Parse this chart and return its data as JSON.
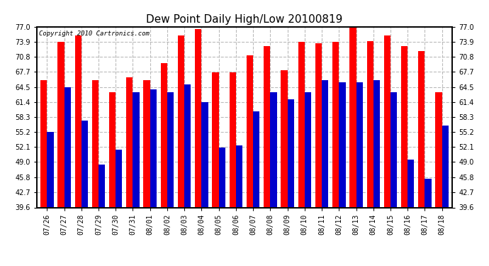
{
  "title": "Dew Point Daily High/Low 20100819",
  "copyright": "Copyright 2010 Cartronics.com",
  "dates": [
    "07/26",
    "07/27",
    "07/28",
    "07/29",
    "07/30",
    "07/31",
    "08/01",
    "08/02",
    "08/03",
    "08/04",
    "08/05",
    "08/06",
    "08/07",
    "08/08",
    "08/09",
    "08/10",
    "08/11",
    "08/12",
    "08/13",
    "08/14",
    "08/15",
    "08/16",
    "08/17",
    "08/18"
  ],
  "highs": [
    66.0,
    73.9,
    75.2,
    66.0,
    63.5,
    66.5,
    66.0,
    69.5,
    75.2,
    76.5,
    67.5,
    67.5,
    71.0,
    73.0,
    68.0,
    73.9,
    73.5,
    73.9,
    77.0,
    74.0,
    75.2,
    73.0,
    72.0,
    63.5
  ],
  "lows": [
    55.2,
    64.5,
    57.5,
    48.5,
    51.5,
    63.5,
    64.0,
    63.5,
    65.0,
    61.4,
    52.0,
    52.5,
    59.5,
    63.5,
    62.0,
    63.5,
    66.0,
    65.5,
    65.5,
    66.0,
    63.5,
    49.5,
    45.5,
    56.5
  ],
  "high_color": "#ff0000",
  "low_color": "#0000cc",
  "bg_color": "#ffffff",
  "plot_bg_color": "#ffffff",
  "grid_color": "#bbbbbb",
  "ylim_min": 39.6,
  "ylim_max": 77.0,
  "yticks": [
    39.6,
    42.7,
    45.8,
    49.0,
    52.1,
    55.2,
    58.3,
    61.4,
    64.5,
    67.7,
    70.8,
    73.9,
    77.0
  ],
  "bar_width": 0.38,
  "title_fontsize": 11,
  "tick_fontsize": 7,
  "copyright_fontsize": 6.5
}
